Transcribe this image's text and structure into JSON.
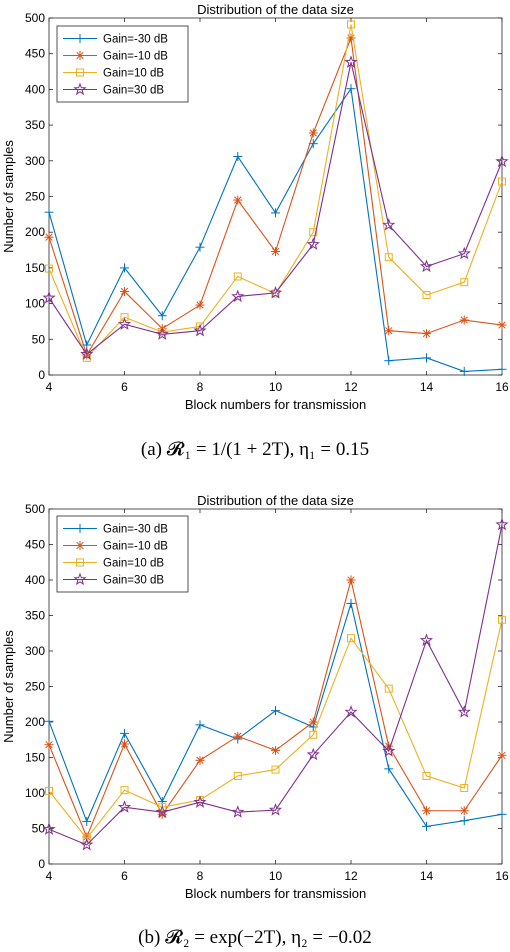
{
  "chart_data": [
    {
      "type": "line",
      "title": "Distribution of the data size",
      "xlabel": "Block numbers for transmission",
      "ylabel": "Number of samples",
      "xlim": [
        4,
        16
      ],
      "ylim": [
        0,
        500
      ],
      "x_ticks": [
        4,
        6,
        8,
        10,
        12,
        14,
        16
      ],
      "y_ticks": [
        0,
        50,
        100,
        150,
        200,
        250,
        300,
        350,
        400,
        450,
        500
      ],
      "x": [
        4,
        5,
        6,
        7,
        8,
        9,
        10,
        11,
        12,
        13,
        14,
        15,
        16
      ],
      "legend_position": "top-left",
      "grid": false,
      "caption": "(a) 𝓡₁ = 1/(1 + 2T), η₁ = 0.15",
      "series": [
        {
          "name": "Gain=-30 dB",
          "color": "#0072BD",
          "marker": "plus",
          "values": [
            228,
            42,
            150,
            83,
            179,
            306,
            227,
            324,
            401,
            20,
            24,
            5,
            8
          ]
        },
        {
          "name": "Gain=-10 dB",
          "color": "#D95319",
          "marker": "asterisk",
          "values": [
            193,
            28,
            117,
            65,
            98,
            245,
            173,
            339,
            472,
            62,
            58,
            77,
            70
          ]
        },
        {
          "name": "Gain=10 dB",
          "color": "#EDB120",
          "marker": "square",
          "values": [
            149,
            24,
            81,
            60,
            68,
            138,
            114,
            200,
            491,
            165,
            112,
            130,
            271
          ]
        },
        {
          "name": "Gain=30 dB",
          "color": "#7E2F8E",
          "marker": "star",
          "values": [
            108,
            29,
            71,
            57,
            62,
            110,
            115,
            183,
            438,
            210,
            152,
            170,
            299
          ]
        }
      ]
    },
    {
      "type": "line",
      "title": "Distribution of the data size",
      "xlabel": "Block numbers for transmission",
      "ylabel": "Number of samples",
      "xlim": [
        4,
        16
      ],
      "ylim": [
        0,
        500
      ],
      "x_ticks": [
        4,
        6,
        8,
        10,
        12,
        14,
        16
      ],
      "y_ticks": [
        0,
        50,
        100,
        150,
        200,
        250,
        300,
        350,
        400,
        450,
        500
      ],
      "x": [
        4,
        5,
        6,
        7,
        8,
        9,
        10,
        11,
        12,
        13,
        14,
        15,
        16
      ],
      "legend_position": "top-left",
      "grid": false,
      "caption": "(b) 𝓡₂ = exp(−2T), η₂ = −0.02",
      "series": [
        {
          "name": "Gain=-30 dB",
          "color": "#0072BD",
          "marker": "plus",
          "values": [
            201,
            60,
            184,
            88,
            196,
            176,
            216,
            193,
            367,
            134,
            53,
            61,
            70
          ]
        },
        {
          "name": "Gain=-10 dB",
          "color": "#D95319",
          "marker": "asterisk",
          "values": [
            168,
            38,
            169,
            70,
            146,
            180,
            160,
            200,
            400,
            166,
            75,
            75,
            153
          ]
        },
        {
          "name": "Gain=10 dB",
          "color": "#EDB120",
          "marker": "square",
          "values": [
            103,
            36,
            104,
            80,
            90,
            124,
            133,
            182,
            318,
            247,
            124,
            107,
            344
          ]
        },
        {
          "name": "Gain=30 dB",
          "color": "#7E2F8E",
          "marker": "star",
          "values": [
            49,
            27,
            80,
            73,
            87,
            73,
            76,
            154,
            214,
            159,
            315,
            214,
            478
          ]
        }
      ]
    }
  ]
}
